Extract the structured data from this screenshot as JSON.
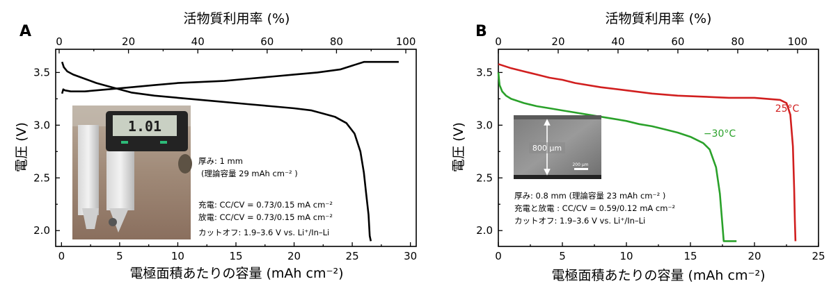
{
  "chart_data": [
    {
      "panel_label": "A",
      "type": "line",
      "xlabel": "電極面積あたりの容量 (mAh cm⁻²)",
      "ylabel": "電圧 (V)",
      "x2label": "活物質利用率 (%)",
      "xlim": [
        -0.5,
        30.5
      ],
      "ylim": [
        1.85,
        3.72
      ],
      "x2lim": [
        -1,
        103
      ],
      "xticks": [
        "0",
        "5",
        "10",
        "15",
        "20",
        "25",
        "30"
      ],
      "yticks": [
        "2.0",
        "2.5",
        "3.0",
        "3.5"
      ],
      "x2ticks": [
        "0",
        "20",
        "40",
        "60",
        "80",
        "100"
      ],
      "series": [
        {
          "color": "#000000",
          "x": [
            0.05,
            0.15,
            0.3,
            0.8,
            2,
            4,
            6,
            8,
            10,
            12,
            14,
            16,
            18,
            20,
            22,
            24,
            26,
            26.5,
            29.0
          ],
          "y": [
            3.3,
            3.34,
            3.33,
            3.32,
            3.32,
            3.34,
            3.36,
            3.38,
            3.4,
            3.41,
            3.42,
            3.44,
            3.46,
            3.48,
            3.5,
            3.53,
            3.6,
            3.6,
            3.6
          ]
        },
        {
          "color": "#000000",
          "x": [
            0.05,
            0.2,
            0.5,
            1,
            2,
            3,
            4,
            5,
            6,
            8,
            10,
            12,
            14,
            16,
            18,
            20,
            21.5,
            22.5,
            23.5,
            24.5,
            25.2,
            25.7,
            26.0,
            26.2,
            26.4,
            26.5,
            26.6
          ],
          "y": [
            3.6,
            3.55,
            3.51,
            3.48,
            3.44,
            3.4,
            3.37,
            3.34,
            3.31,
            3.28,
            3.26,
            3.24,
            3.22,
            3.2,
            3.18,
            3.16,
            3.14,
            3.11,
            3.08,
            3.02,
            2.92,
            2.75,
            2.55,
            2.35,
            2.15,
            1.95,
            1.9
          ]
        }
      ],
      "annotations": [
        {
          "text": "厚み: 1 mm"
        },
        {
          "text": "(理論容量 29 mAh cm⁻² )"
        },
        {
          "text": "充電: CC/CV = 0.73/0.15 mA cm⁻²"
        },
        {
          "text": "放電: CC/CV = 0.73/0.15 mA cm⁻²"
        },
        {
          "text": "カットオフ: 1.9–3.6 V vs. Li⁺/In–Li"
        }
      ],
      "inset_photo": {
        "caliper_display": "1.01"
      }
    },
    {
      "panel_label": "B",
      "type": "line",
      "xlabel": "電極面積あたりの容量 (mAh cm⁻²)",
      "ylabel": "電圧 (V)",
      "x2label": "活物質利用率 (%)",
      "xlim": [
        0,
        25
      ],
      "ylim": [
        1.85,
        3.72
      ],
      "x2lim": [
        0,
        107
      ],
      "xticks": [
        "0",
        "5",
        "10",
        "15",
        "20",
        "25"
      ],
      "yticks": [
        "2.0",
        "2.5",
        "3.0",
        "3.5"
      ],
      "x2ticks": [
        "0",
        "20",
        "40",
        "60",
        "80",
        "100"
      ],
      "series": [
        {
          "name": "25°C",
          "color": "#d11f1f",
          "x": [
            0,
            1,
            2,
            3,
            4,
            5,
            6,
            8,
            10,
            12,
            14,
            16,
            18,
            20,
            21,
            22,
            22.5,
            22.8,
            23.0,
            23.1,
            23.15,
            23.2
          ],
          "y": [
            3.58,
            3.54,
            3.51,
            3.48,
            3.45,
            3.43,
            3.4,
            3.36,
            3.33,
            3.3,
            3.28,
            3.27,
            3.26,
            3.26,
            3.25,
            3.24,
            3.21,
            3.1,
            2.8,
            2.4,
            2.1,
            1.9
          ]
        },
        {
          "name": "−30°C",
          "color": "#2aa12a",
          "x": [
            0,
            0.1,
            0.3,
            0.6,
            1,
            2,
            3,
            4,
            5,
            6,
            7,
            8,
            9,
            10,
            11,
            12,
            13,
            14,
            15,
            16,
            16.5,
            17.0,
            17.3,
            17.5,
            17.6,
            18.6
          ],
          "y": [
            3.5,
            3.38,
            3.32,
            3.28,
            3.25,
            3.21,
            3.18,
            3.16,
            3.14,
            3.12,
            3.1,
            3.08,
            3.06,
            3.04,
            3.01,
            2.99,
            2.96,
            2.93,
            2.89,
            2.83,
            2.77,
            2.6,
            2.35,
            2.05,
            1.9,
            1.9
          ]
        }
      ],
      "annotations": [
        {
          "text": "厚み: 0.8 mm (理論容量 23 mAh cm⁻² )"
        },
        {
          "text": "充電と放電 : CC/CV = 0.59/0.12 mA cm⁻²"
        },
        {
          "text": "カットオフ: 1.9–3.6 V vs. Li⁺/In–Li"
        }
      ],
      "inset_photo": {
        "scale_label": "800 µm",
        "scalebar_label": "200 µm"
      }
    }
  ]
}
